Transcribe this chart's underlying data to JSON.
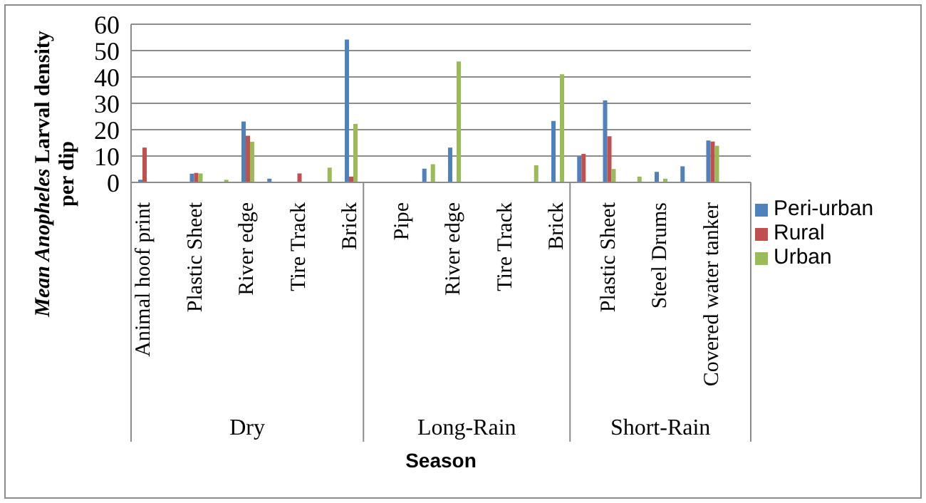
{
  "chart_data": {
    "type": "bar",
    "ylabel": "Mean Anopheles Larval density per dip",
    "xlabel": "Season",
    "categories": [
      "Animal hoof print",
      null,
      "Plastic Sheet",
      null,
      "River edge",
      null,
      "Tire Track",
      null,
      "Brick",
      null,
      "Pipe",
      null,
      "River edge",
      null,
      "Tire Track",
      null,
      "Brick",
      null,
      "Plastic Sheet",
      null,
      "Steel Drums",
      null,
      "Covered water tanker",
      null
    ],
    "series": [
      {
        "name": "Peri-urban",
        "color": "#4f81bd",
        "values": [
          1,
          null,
          3.3,
          null,
          23.1,
          1.4,
          null,
          null,
          54.2,
          null,
          null,
          5.2,
          13.2,
          null,
          null,
          null,
          23.3,
          9.9,
          31.1,
          null,
          4,
          6.1,
          15.9,
          null
        ]
      },
      {
        "name": "Rural",
        "color": "#c0504d",
        "values": [
          13.2,
          null,
          3.6,
          null,
          17.7,
          null,
          3.4,
          null,
          2.2,
          null,
          null,
          null,
          null,
          null,
          null,
          null,
          null,
          10.8,
          17.5,
          null,
          null,
          null,
          15.5,
          null
        ]
      },
      {
        "name": "Urban",
        "color": "#9bbb59",
        "values": [
          null,
          null,
          3.4,
          1,
          15.4,
          null,
          null,
          5.6,
          22.2,
          null,
          null,
          6.9,
          45.9,
          null,
          null,
          6.5,
          41,
          null,
          5.1,
          2.2,
          1.4,
          null,
          13.9,
          null
        ]
      }
    ],
    "ylim": [
      0,
      60
    ],
    "yticks": [
      0,
      10,
      20,
      30,
      40,
      50,
      60
    ],
    "grid": "y",
    "legend": "right",
    "annotations": [
      "Dry",
      "Long-Rain",
      "Short-Rain"
    ]
  }
}
